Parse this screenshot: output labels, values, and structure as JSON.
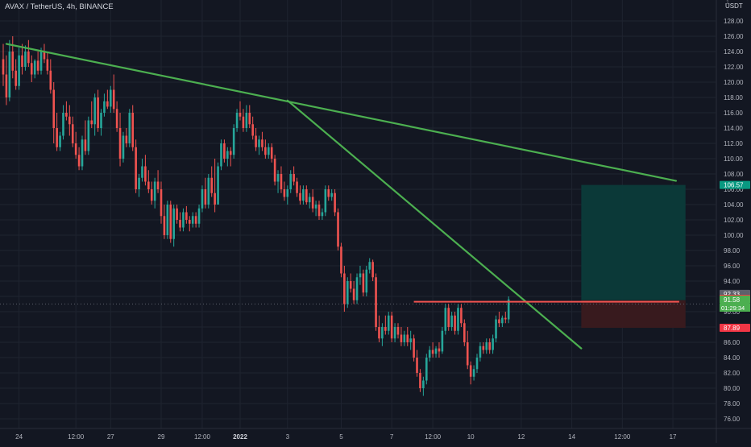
{
  "header": {
    "symbol_line": "AVAX / TetherUS, 4h, BINANCE",
    "currency": "USDT",
    "currency_tick": "1"
  },
  "colors": {
    "background": "#131722",
    "grid": "#1f2430",
    "bull": "#26a69a",
    "bear": "#ef5350",
    "trendline": "#4caf50",
    "resistance": "#f05350",
    "target_zone": "#0b3b3a",
    "stop_zone": "#3a1a1f",
    "axis_text": "#b2b5be"
  },
  "chart_data": {
    "type": "candlestick",
    "title": "",
    "xlabel": "",
    "ylabel": "",
    "ylim": [
      75,
      129
    ],
    "grid": true,
    "price_axis": {
      "ticks": [
        76,
        78,
        80,
        82,
        84,
        86,
        88,
        90,
        92,
        94,
        96,
        98,
        100,
        102,
        104,
        106,
        108,
        110,
        112,
        114,
        116,
        118,
        120,
        122,
        124,
        126,
        128
      ],
      "tick_labels": [
        "76.00",
        "78.00",
        "80.00",
        "82.00",
        "84.00",
        "86.00",
        "88.00",
        "90.00",
        "92.00",
        "94.00",
        "96.00",
        "98.00",
        "100.00",
        "102.00",
        "104.00",
        "106.00",
        "108.00",
        "110.00",
        "112.00",
        "114.00",
        "116.00",
        "118.00",
        "120.00",
        "122.00",
        "124.00",
        "126.00",
        "128.00"
      ]
    },
    "time_axis": {
      "labels": [
        "24",
        "12:00",
        "27",
        "29",
        "12:00",
        "2022",
        "3",
        "5",
        "7",
        "12:00",
        "10",
        "12",
        "14",
        "12:00",
        "17"
      ],
      "bar_index": [
        5,
        23,
        34,
        50,
        63,
        75,
        90,
        107,
        123,
        136,
        148,
        164,
        180,
        196,
        212
      ]
    },
    "candles": {
      "fields": [
        "open",
        "high",
        "low",
        "close"
      ],
      "values": [
        [
          123.0,
          125.0,
          119.5,
          121.0
        ],
        [
          121.0,
          123.5,
          117.0,
          118.0
        ],
        [
          118.0,
          125.5,
          117.5,
          124.0
        ],
        [
          124.0,
          126.0,
          120.5,
          121.5
        ],
        [
          121.5,
          123.0,
          119.0,
          119.5
        ],
        [
          119.5,
          124.5,
          119.0,
          123.5
        ],
        [
          123.5,
          125.0,
          121.0,
          122.0
        ],
        [
          122.0,
          124.8,
          121.5,
          124.0
        ],
        [
          124.0,
          125.5,
          122.0,
          122.5
        ],
        [
          122.5,
          123.5,
          120.0,
          121.0
        ],
        [
          121.0,
          123.0,
          120.5,
          122.8
        ],
        [
          122.8,
          124.0,
          121.0,
          121.5
        ],
        [
          121.5,
          124.5,
          121.0,
          124.0
        ],
        [
          124.0,
          125.0,
          122.5,
          123.0
        ],
        [
          123.0,
          124.0,
          121.0,
          121.5
        ],
        [
          121.5,
          123.0,
          118.5,
          119.0
        ],
        [
          119.0,
          120.0,
          112.0,
          114.0
        ],
        [
          114.0,
          116.0,
          111.0,
          111.5
        ],
        [
          111.5,
          113.5,
          111.0,
          113.0
        ],
        [
          113.0,
          117.0,
          112.5,
          116.0
        ],
        [
          116.0,
          117.5,
          115.0,
          115.5
        ],
        [
          115.5,
          117.0,
          113.0,
          114.5
        ],
        [
          114.5,
          115.5,
          111.5,
          112.0
        ],
        [
          112.0,
          113.5,
          110.0,
          110.5
        ],
        [
          110.5,
          111.5,
          108.5,
          109.0
        ],
        [
          109.0,
          113.0,
          108.5,
          112.5
        ],
        [
          112.5,
          115.0,
          110.5,
          111.0
        ],
        [
          111.0,
          115.5,
          110.5,
          115.0
        ],
        [
          115.0,
          117.5,
          114.0,
          114.5
        ],
        [
          114.5,
          118.5,
          113.0,
          118.0
        ],
        [
          118.0,
          119.0,
          113.5,
          114.0
        ],
        [
          114.0,
          116.5,
          113.0,
          116.0
        ],
        [
          116.0,
          118.5,
          115.5,
          117.5
        ],
        [
          117.5,
          119.0,
          116.5,
          116.8
        ],
        [
          116.8,
          119.5,
          116.0,
          119.0
        ],
        [
          119.0,
          121.0,
          116.0,
          116.5
        ],
        [
          116.5,
          117.5,
          113.5,
          114.0
        ],
        [
          114.0,
          116.0,
          109.0,
          110.0
        ],
        [
          110.0,
          113.5,
          109.5,
          113.0
        ],
        [
          113.0,
          114.0,
          111.5,
          112.0
        ],
        [
          112.0,
          116.5,
          111.5,
          116.0
        ],
        [
          116.0,
          117.0,
          111.0,
          111.5
        ],
        [
          111.5,
          112.5,
          105.5,
          106.0
        ],
        [
          106.0,
          108.0,
          105.0,
          107.5
        ],
        [
          107.5,
          110.0,
          107.0,
          109.0
        ],
        [
          109.0,
          110.5,
          106.5,
          107.0
        ],
        [
          107.0,
          108.5,
          105.5,
          106.0
        ],
        [
          106.0,
          107.0,
          104.0,
          104.5
        ],
        [
          104.5,
          107.5,
          103.5,
          107.0
        ],
        [
          107.0,
          108.5,
          105.5,
          106.0
        ],
        [
          106.0,
          107.0,
          101.5,
          102.5
        ],
        [
          102.5,
          104.0,
          99.5,
          100.0
        ],
        [
          100.0,
          104.5,
          99.5,
          104.0
        ],
        [
          104.0,
          104.5,
          99.0,
          99.5
        ],
        [
          99.5,
          104.0,
          98.5,
          103.5
        ],
        [
          103.5,
          104.0,
          101.5,
          102.0
        ],
        [
          102.0,
          103.0,
          100.5,
          101.0
        ],
        [
          101.0,
          103.5,
          100.5,
          103.0
        ],
        [
          103.0,
          103.8,
          101.5,
          102.0
        ],
        [
          102.0,
          102.5,
          100.5,
          101.5
        ],
        [
          101.5,
          103.0,
          101.0,
          102.5
        ],
        [
          102.5,
          103.0,
          101.0,
          101.5
        ],
        [
          101.5,
          104.0,
          101.0,
          103.5
        ],
        [
          103.5,
          106.5,
          103.0,
          106.0
        ],
        [
          106.0,
          107.5,
          103.5,
          104.0
        ],
        [
          104.0,
          108.0,
          103.5,
          107.5
        ],
        [
          107.5,
          109.0,
          105.0,
          105.5
        ],
        [
          105.5,
          110.0,
          103.0,
          104.0
        ],
        [
          104.0,
          109.5,
          104.0,
          109.0
        ],
        [
          109.0,
          112.5,
          108.5,
          112.0
        ],
        [
          112.0,
          112.5,
          109.5,
          110.0
        ],
        [
          110.0,
          111.5,
          109.0,
          111.0
        ],
        [
          111.0,
          111.5,
          109.0,
          110.5
        ],
        [
          110.5,
          114.5,
          110.0,
          114.0
        ],
        [
          114.0,
          116.5,
          113.5,
          116.0
        ],
        [
          116.0,
          117.5,
          115.0,
          115.5
        ],
        [
          115.5,
          116.5,
          113.5,
          114.0
        ],
        [
          114.0,
          117.0,
          113.5,
          116.0
        ],
        [
          116.0,
          117.0,
          114.0,
          114.5
        ],
        [
          114.5,
          115.5,
          112.5,
          113.0
        ],
        [
          113.0,
          114.0,
          111.0,
          111.5
        ],
        [
          111.5,
          113.0,
          110.5,
          112.5
        ],
        [
          112.5,
          113.5,
          111.0,
          111.5
        ],
        [
          111.5,
          112.5,
          110.0,
          110.5
        ],
        [
          110.5,
          112.0,
          110.0,
          111.5
        ],
        [
          111.5,
          112.0,
          109.5,
          110.0
        ],
        [
          110.0,
          110.5,
          106.5,
          107.0
        ],
        [
          107.0,
          108.5,
          105.5,
          108.0
        ],
        [
          108.0,
          109.0,
          105.5,
          106.0
        ],
        [
          106.0,
          107.0,
          104.5,
          105.0
        ],
        [
          105.0,
          106.5,
          104.0,
          106.0
        ],
        [
          106.0,
          108.5,
          105.5,
          108.0
        ],
        [
          108.0,
          109.0,
          106.5,
          107.0
        ],
        [
          107.0,
          107.5,
          105.0,
          105.5
        ],
        [
          105.5,
          106.5,
          104.0,
          104.5
        ],
        [
          104.5,
          106.5,
          104.0,
          106.0
        ],
        [
          106.0,
          106.5,
          104.0,
          104.3
        ],
        [
          104.3,
          105.5,
          103.5,
          105.0
        ],
        [
          105.0,
          106.0,
          103.0,
          103.5
        ],
        [
          103.5,
          104.5,
          102.5,
          104.0
        ],
        [
          104.0,
          104.5,
          102.0,
          102.5
        ],
        [
          102.5,
          103.5,
          102.0,
          103.0
        ],
        [
          103.0,
          106.5,
          102.5,
          106.0
        ],
        [
          106.0,
          106.5,
          104.5,
          105.0
        ],
        [
          105.0,
          106.0,
          104.5,
          105.5
        ],
        [
          105.5,
          106.0,
          102.5,
          103.0
        ],
        [
          103.0,
          103.5,
          98.0,
          98.5
        ],
        [
          98.5,
          99.0,
          94.5,
          95.0
        ],
        [
          95.0,
          96.0,
          90.0,
          91.0
        ],
        [
          91.0,
          94.5,
          90.5,
          94.0
        ],
        [
          94.0,
          95.0,
          92.5,
          93.0
        ],
        [
          93.0,
          94.0,
          91.0,
          91.5
        ],
        [
          91.5,
          95.0,
          91.0,
          94.5
        ],
        [
          94.5,
          96.0,
          93.5,
          95.0
        ],
        [
          95.0,
          95.5,
          92.0,
          92.5
        ],
        [
          92.5,
          96.0,
          92.0,
          95.5
        ],
        [
          95.5,
          97.0,
          95.0,
          96.5
        ],
        [
          96.5,
          96.8,
          94.0,
          94.5
        ],
        [
          94.5,
          95.0,
          87.5,
          88.0
        ],
        [
          88.0,
          89.5,
          86.0,
          86.5
        ],
        [
          86.5,
          88.5,
          85.5,
          88.0
        ],
        [
          88.0,
          89.5,
          87.0,
          87.5
        ],
        [
          87.5,
          90.0,
          87.0,
          89.5
        ],
        [
          89.5,
          90.0,
          86.0,
          86.5
        ],
        [
          86.5,
          88.5,
          86.0,
          88.0
        ],
        [
          88.0,
          88.5,
          86.5,
          87.0
        ],
        [
          87.0,
          88.0,
          85.5,
          86.0
        ],
        [
          86.0,
          87.5,
          85.5,
          87.0
        ],
        [
          87.0,
          88.0,
          85.5,
          86.0
        ],
        [
          86.0,
          87.5,
          85.0,
          86.5
        ],
        [
          86.5,
          87.0,
          83.5,
          84.0
        ],
        [
          84.0,
          85.0,
          81.5,
          82.0
        ],
        [
          82.0,
          82.5,
          79.5,
          80.0
        ],
        [
          80.0,
          81.5,
          79.0,
          81.0
        ],
        [
          81.0,
          84.5,
          80.5,
          84.0
        ],
        [
          84.0,
          85.5,
          83.5,
          85.0
        ],
        [
          85.0,
          86.0,
          84.0,
          84.5
        ],
        [
          84.5,
          85.5,
          84.0,
          85.2
        ],
        [
          85.2,
          86.0,
          84.0,
          84.8
        ],
        [
          84.8,
          88.0,
          84.5,
          87.5
        ],
        [
          87.5,
          91.0,
          87.0,
          90.5
        ],
        [
          90.5,
          91.0,
          87.5,
          88.0
        ],
        [
          88.0,
          90.0,
          87.5,
          89.5
        ],
        [
          89.5,
          90.0,
          87.0,
          87.5
        ],
        [
          87.5,
          91.0,
          87.0,
          90.5
        ],
        [
          90.5,
          91.0,
          88.0,
          88.5
        ],
        [
          88.5,
          89.0,
          85.5,
          86.0
        ],
        [
          86.0,
          87.5,
          82.5,
          83.0
        ],
        [
          83.0,
          83.5,
          80.5,
          81.5
        ],
        [
          81.5,
          83.0,
          81.0,
          82.5
        ],
        [
          82.5,
          84.5,
          82.0,
          84.0
        ],
        [
          84.0,
          86.0,
          83.5,
          85.5
        ],
        [
          85.5,
          86.0,
          84.5,
          85.0
        ],
        [
          85.0,
          86.5,
          84.5,
          86.0
        ],
        [
          86.0,
          86.5,
          84.5,
          85.0
        ],
        [
          85.0,
          87.0,
          84.5,
          86.5
        ],
        [
          86.5,
          89.5,
          86.0,
          89.0
        ],
        [
          89.0,
          90.0,
          88.0,
          88.5
        ],
        [
          88.5,
          89.5,
          88.0,
          89.2
        ],
        [
          89.2,
          90.0,
          88.5,
          89.0
        ],
        [
          89.0,
          92.0,
          88.5,
          91.6
        ]
      ]
    },
    "annotations": {
      "trendlines": [
        {
          "name": "long-trendline",
          "from": {
            "bar": 1,
            "price": 125.0
          },
          "to": {
            "bar": 213,
            "price": 107.1
          }
        },
        {
          "name": "steep-trendline",
          "from": {
            "bar": 90,
            "price": 117.6
          },
          "to": {
            "bar": 183,
            "price": 85.2
          }
        }
      ],
      "horizontal": [
        {
          "name": "resistance-line",
          "price": 91.3,
          "from_bar": 130,
          "to_bar": 214
        }
      ],
      "zones": [
        {
          "name": "target-zone",
          "from_bar": 183,
          "to_bar": 216,
          "top": 106.57,
          "bottom": 91.5
        },
        {
          "name": "stop-zone",
          "from_bar": 183,
          "to_bar": 216,
          "top": 91.5,
          "bottom": 87.89
        }
      ]
    },
    "price_badges": [
      {
        "name": "target-price-badge",
        "label": "106.57",
        "price": 106.57,
        "color": "#089981"
      },
      {
        "name": "ask-price-badge",
        "label": "92.33",
        "price": 92.33,
        "color": "#5d606b"
      },
      {
        "name": "level-price-badge",
        "label": "91.68",
        "price": 91.68,
        "color": "#f23645"
      },
      {
        "name": "last-price-badge",
        "label": "91.58",
        "price": 91.58,
        "color": "#4caf50"
      },
      {
        "name": "stop-price-badge",
        "label": "87.89",
        "price": 87.89,
        "color": "#f23645"
      }
    ],
    "countdown": {
      "label": "01:29:34",
      "color": "#4caf50"
    },
    "crosshair_price": 91.0
  }
}
